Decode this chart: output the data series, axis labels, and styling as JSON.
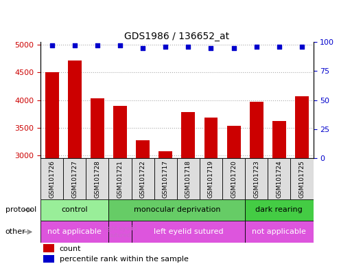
{
  "title": "GDS1986 / 136652_at",
  "samples": [
    "GSM101726",
    "GSM101727",
    "GSM101728",
    "GSM101721",
    "GSM101722",
    "GSM101717",
    "GSM101718",
    "GSM101719",
    "GSM101720",
    "GSM101723",
    "GSM101724",
    "GSM101725"
  ],
  "counts": [
    4500,
    4720,
    4030,
    3890,
    3270,
    3080,
    3780,
    3680,
    3530,
    3970,
    3620,
    4070
  ],
  "percentile": [
    97,
    97,
    97,
    97,
    95,
    96,
    96,
    95,
    95,
    96,
    96,
    96
  ],
  "ylim_left": [
    2950,
    5050
  ],
  "ylim_right": [
    0,
    100
  ],
  "yticks_left": [
    3000,
    3500,
    4000,
    4500,
    5000
  ],
  "yticks_right": [
    0,
    25,
    50,
    75,
    100
  ],
  "bar_color": "#cc0000",
  "scatter_color": "#0000cc",
  "protocol_labels": [
    {
      "text": "control",
      "start": 0,
      "end": 3,
      "color": "#99ee99"
    },
    {
      "text": "monocular deprivation",
      "start": 3,
      "end": 9,
      "color": "#66cc66"
    },
    {
      "text": "dark rearing",
      "start": 9,
      "end": 12,
      "color": "#44cc44"
    }
  ],
  "other_labels": [
    {
      "text": "not applicable",
      "start": 0,
      "end": 3,
      "color": "#dd55dd"
    },
    {
      "text": "right eyelid\nsutured",
      "start": 3,
      "end": 4,
      "color": "#dd55dd"
    },
    {
      "text": "left eyelid sutured",
      "start": 4,
      "end": 9,
      "color": "#dd55dd"
    },
    {
      "text": "not applicable",
      "start": 9,
      "end": 12,
      "color": "#dd55dd"
    }
  ],
  "legend_items": [
    {
      "label": "count",
      "color": "#cc0000"
    },
    {
      "label": "percentile rank within the sample",
      "color": "#0000cc"
    }
  ],
  "background_color": "#ffffff",
  "grid_color": "#aaaaaa",
  "bar_width": 0.6,
  "sample_box_color": "#dddddd",
  "border_color": "#000000",
  "other_text_color": "#ffffff",
  "right_eyelid_text_color": "#cc66cc"
}
